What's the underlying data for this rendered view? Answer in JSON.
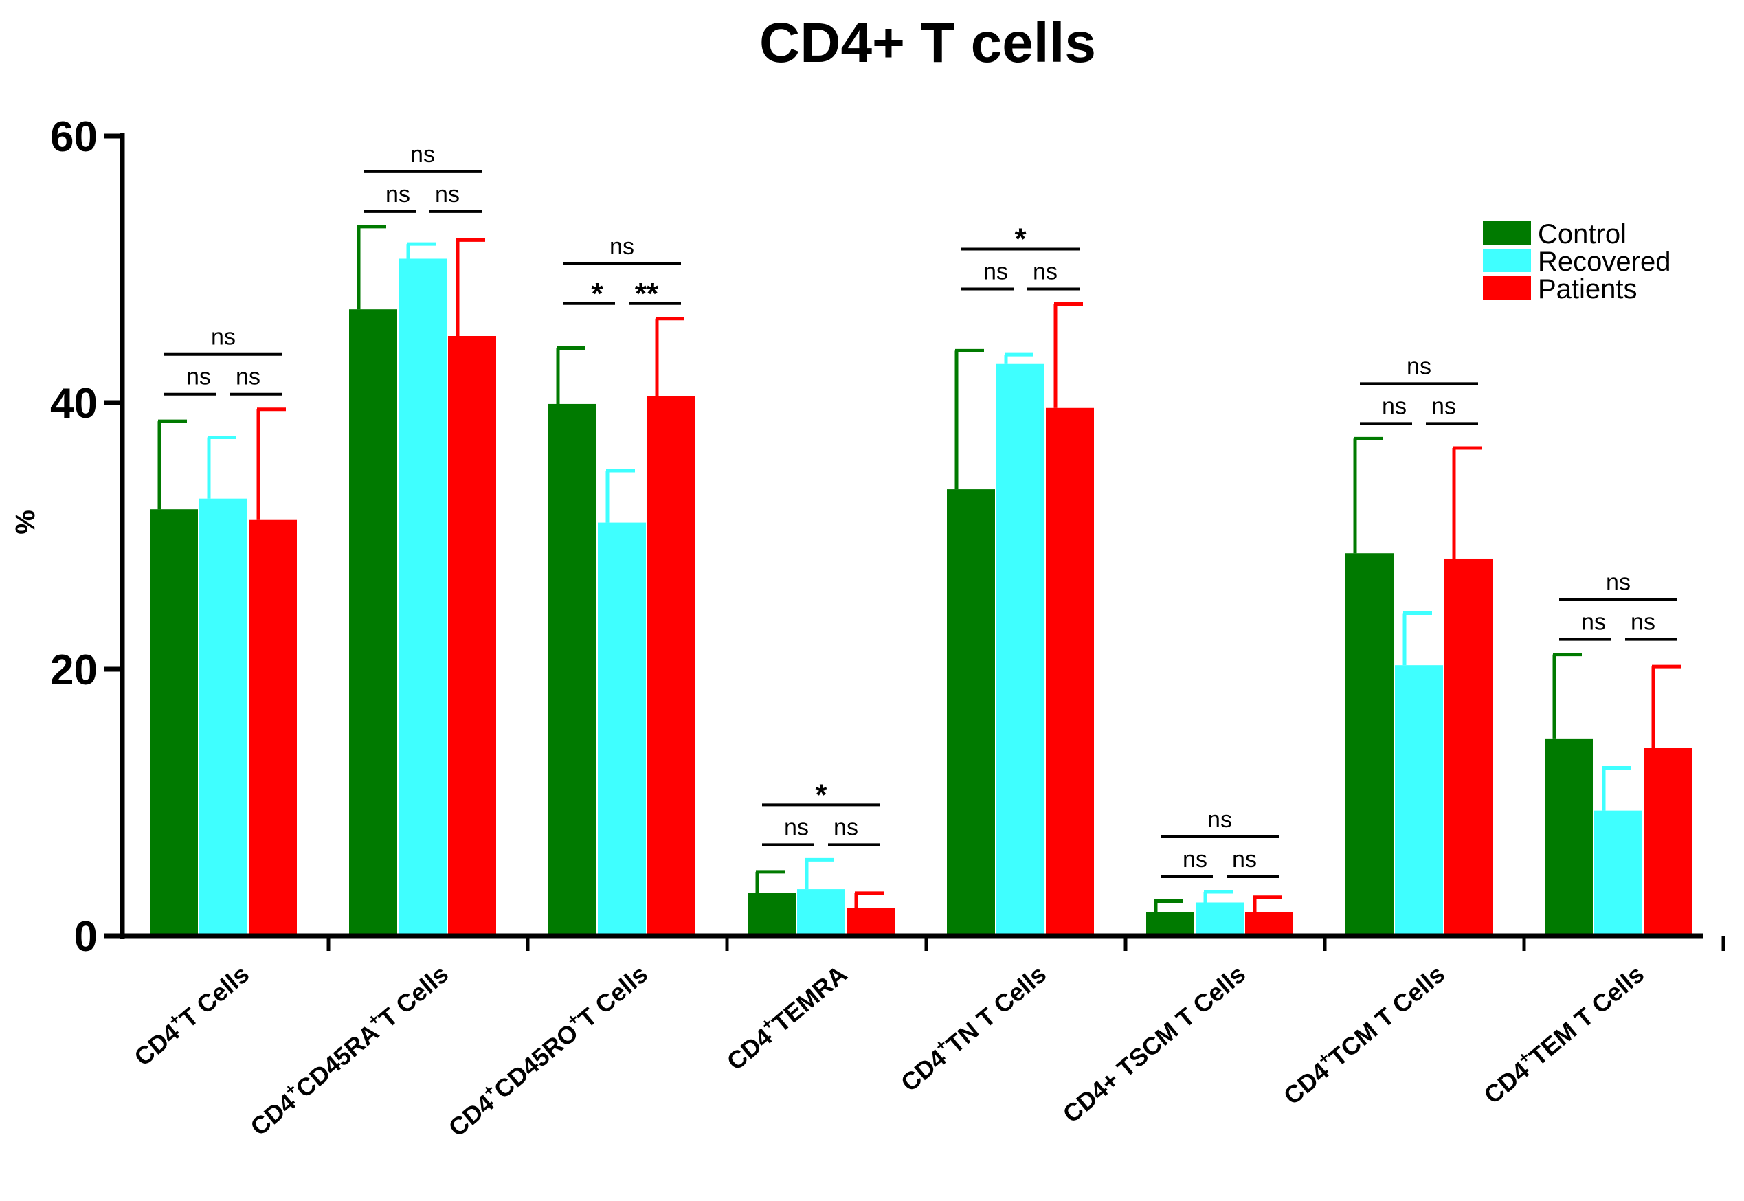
{
  "chart_data": {
    "type": "bar",
    "title": "CD4+ T cells",
    "xlabel": "",
    "ylabel": "%",
    "ylim": [
      0,
      60
    ],
    "yticks": [
      "0",
      "20",
      "40",
      "60"
    ],
    "grid": false,
    "legend_position": "top-right",
    "categories": [
      {
        "base": "CD4",
        "sup": "+",
        "rest": "T Cells"
      },
      {
        "base": "CD4",
        "sup": "+",
        "mid": "CD45RA",
        "sup2": "+",
        "rest": "T Cells"
      },
      {
        "base": "CD4",
        "sup": "+",
        "mid": "CD45RO",
        "sup2": "+",
        "rest": "T Cells"
      },
      {
        "base": "CD4",
        "sup": "+",
        "rest": "TEMRA"
      },
      {
        "base": "CD4",
        "sup": "+",
        "rest": "TN T Cells"
      },
      {
        "base": "CD4+ TSCM T Cells"
      },
      {
        "base": "CD4",
        "sup": "+",
        "rest": "TCM T Cells"
      },
      {
        "base": "CD4",
        "sup": "+",
        "rest": "TEM T Cells"
      }
    ],
    "series": [
      {
        "name": "Control",
        "color": "#007a00",
        "values": [
          32.0,
          47.0,
          39.9,
          3.2,
          33.5,
          1.8,
          28.7,
          14.8
        ],
        "errors": [
          6.6,
          6.2,
          4.2,
          1.6,
          10.4,
          0.8,
          8.6,
          6.3
        ]
      },
      {
        "name": "Recovered",
        "color": "#3fffff",
        "values": [
          32.8,
          50.8,
          31.0,
          3.5,
          42.9,
          2.5,
          20.3,
          9.4
        ],
        "errors": [
          4.6,
          1.1,
          3.9,
          2.2,
          0.7,
          0.8,
          3.9,
          3.2
        ]
      },
      {
        "name": "Patients",
        "color": "#ff0000",
        "values": [
          31.2,
          45.0,
          40.5,
          2.1,
          39.6,
          1.8,
          28.3,
          14.1
        ],
        "errors": [
          8.3,
          7.2,
          5.8,
          1.1,
          7.8,
          1.1,
          8.3,
          6.1
        ]
      }
    ],
    "significance": [
      {
        "top": "ns",
        "left": "ns",
        "right": "ns"
      },
      {
        "top": "ns",
        "left": "ns",
        "right": "ns"
      },
      {
        "top": "ns",
        "left": "*",
        "right": "**"
      },
      {
        "top": "*",
        "left": "ns",
        "right": "ns"
      },
      {
        "top": "*",
        "left": "ns",
        "right": "ns"
      },
      {
        "top": "ns",
        "left": "ns",
        "right": "ns"
      },
      {
        "top": "ns",
        "left": "ns",
        "right": "ns"
      },
      {
        "top": "ns",
        "left": "ns",
        "right": "ns"
      }
    ]
  }
}
